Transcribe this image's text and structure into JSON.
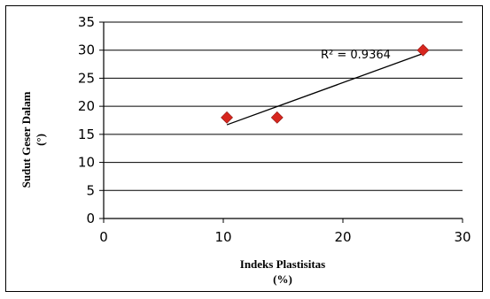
{
  "chart_data": {
    "type": "scatter",
    "xlabel_line1": "Indeks Plastisitas",
    "xlabel_line2": "(%)",
    "ylabel_line1": "Sudut Geser Dalam",
    "ylabel_line2": "(°)",
    "xlim": [
      0,
      30
    ],
    "ylim": [
      0,
      35
    ],
    "xticks": [
      0,
      10,
      20,
      30
    ],
    "yticks": [
      0,
      5,
      10,
      15,
      20,
      25,
      30,
      35
    ],
    "grid": "horizontal",
    "points": [
      {
        "x": 10.3,
        "y": 18
      },
      {
        "x": 14.5,
        "y": 18
      },
      {
        "x": 26.7,
        "y": 30
      }
    ],
    "trendline": {
      "type": "linear",
      "x": [
        10.3,
        26.7
      ],
      "y": [
        16.7,
        29.4
      ]
    },
    "annotation": "R² = 0.9364",
    "marker_color": "#d7261e",
    "line_color": "#000000"
  }
}
